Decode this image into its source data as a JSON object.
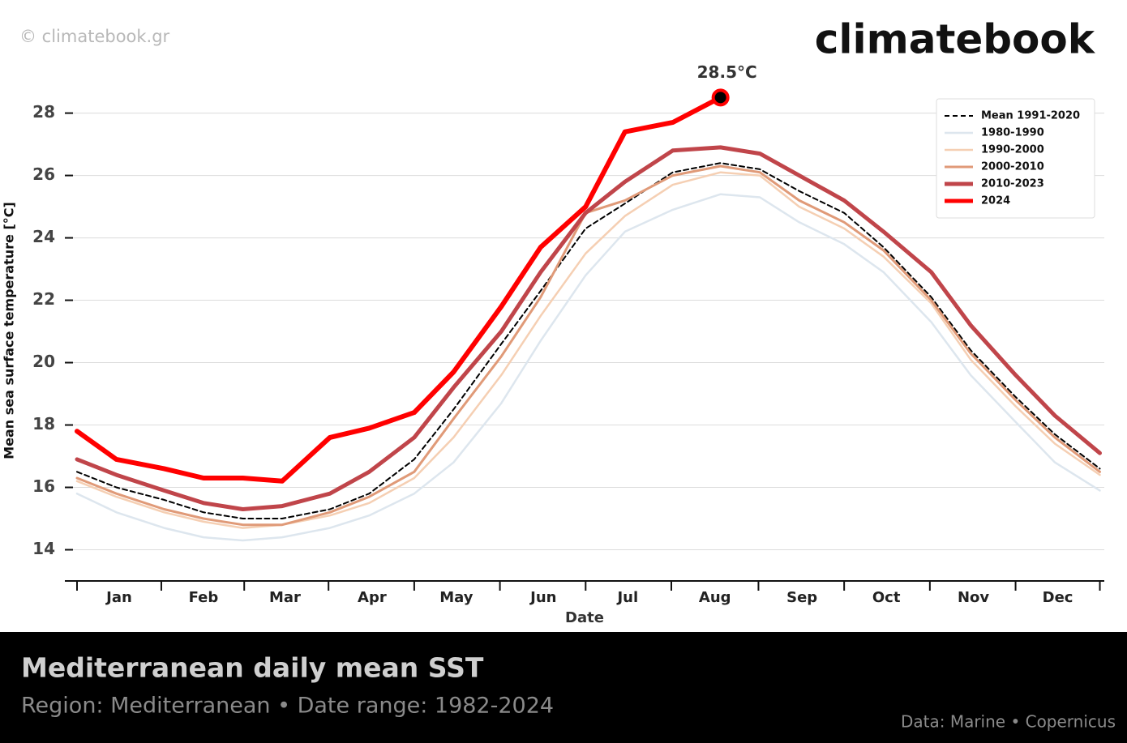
{
  "chart_data": {
    "type": "line",
    "watermark": "© climatebook.gr",
    "logo": "climatebook",
    "title": "Mediterranean daily mean SST",
    "subtitle": "Region: Mediterranean • Date range: 1982-2024",
    "source": "Data: Marine • Copernicus",
    "x_label": "Date",
    "y_label": "Mean sea surface temperature [°C]",
    "annotation": "28.5°C",
    "x": [
      1,
      15,
      32,
      46,
      60,
      74,
      91,
      105,
      121,
      135,
      152,
      166,
      182,
      196,
      213,
      230,
      244,
      258,
      274,
      288,
      305,
      319,
      335,
      349,
      365
    ],
    "xlim": [
      1,
      366
    ],
    "xticks": [
      {
        "value": 16,
        "label": "Jan"
      },
      {
        "value": 46,
        "label": "Feb"
      },
      {
        "value": 75,
        "label": "Mar"
      },
      {
        "value": 106,
        "label": "Apr"
      },
      {
        "value": 136,
        "label": "May"
      },
      {
        "value": 167,
        "label": "Jun"
      },
      {
        "value": 197,
        "label": "Jul"
      },
      {
        "value": 228,
        "label": "Aug"
      },
      {
        "value": 259,
        "label": "Sep"
      },
      {
        "value": 289,
        "label": "Oct"
      },
      {
        "value": 320,
        "label": "Nov"
      },
      {
        "value": 350,
        "label": "Dec"
      }
    ],
    "ylim": [
      13,
      29.6
    ],
    "yticks": [
      14,
      16,
      18,
      20,
      22,
      24,
      26,
      28
    ],
    "grid": true,
    "legend": "upper right",
    "series": [
      {
        "name": "Mean 1991-2020",
        "color": "#000000",
        "dashed": true,
        "values": [
          16.5,
          16.0,
          15.6,
          15.2,
          15.0,
          15.0,
          15.3,
          15.8,
          16.9,
          18.5,
          20.6,
          22.3,
          24.3,
          25.1,
          26.1,
          26.4,
          26.2,
          25.5,
          24.8,
          23.7,
          22.1,
          20.4,
          18.9,
          17.7,
          16.6
        ]
      },
      {
        "name": "1980-1990",
        "color": "#dde6ee",
        "values": [
          15.8,
          15.2,
          14.7,
          14.4,
          14.3,
          14.4,
          14.7,
          15.1,
          15.8,
          16.8,
          18.7,
          20.7,
          22.8,
          24.2,
          24.9,
          25.4,
          25.3,
          24.5,
          23.8,
          22.9,
          21.3,
          19.6,
          18.1,
          16.8,
          15.9
        ]
      },
      {
        "name": "1990-2000",
        "color": "#f5cfb3",
        "values": [
          16.2,
          15.7,
          15.2,
          14.9,
          14.7,
          14.8,
          15.1,
          15.5,
          16.3,
          17.6,
          19.6,
          21.5,
          23.5,
          24.7,
          25.7,
          26.1,
          26.0,
          25.0,
          24.3,
          23.4,
          21.9,
          20.1,
          18.6,
          17.4,
          16.4
        ]
      },
      {
        "name": "2000-2010",
        "color": "#e09a78",
        "values": [
          16.3,
          15.8,
          15.3,
          15.0,
          14.8,
          14.8,
          15.2,
          15.7,
          16.5,
          18.2,
          20.2,
          22.1,
          24.8,
          25.2,
          26.0,
          26.3,
          26.1,
          25.2,
          24.5,
          23.6,
          22.0,
          20.3,
          18.8,
          17.6,
          16.5
        ]
      },
      {
        "name": "2010-2023",
        "color": "#c0454a",
        "values": [
          16.9,
          16.4,
          15.9,
          15.5,
          15.3,
          15.4,
          15.8,
          16.5,
          17.6,
          19.2,
          21.0,
          22.9,
          24.8,
          25.8,
          26.8,
          26.9,
          26.7,
          26.0,
          25.2,
          24.2,
          22.9,
          21.2,
          19.6,
          18.3,
          17.1
        ]
      },
      {
        "name": "2024",
        "color": "#ff0000",
        "values": [
          17.8,
          16.9,
          16.6,
          16.3,
          16.3,
          16.2,
          17.6,
          17.9,
          18.4,
          19.7,
          21.8,
          23.7,
          25.0,
          27.4,
          27.7,
          28.5,
          null,
          null,
          null,
          null,
          null,
          null,
          null,
          null,
          null
        ]
      }
    ]
  }
}
